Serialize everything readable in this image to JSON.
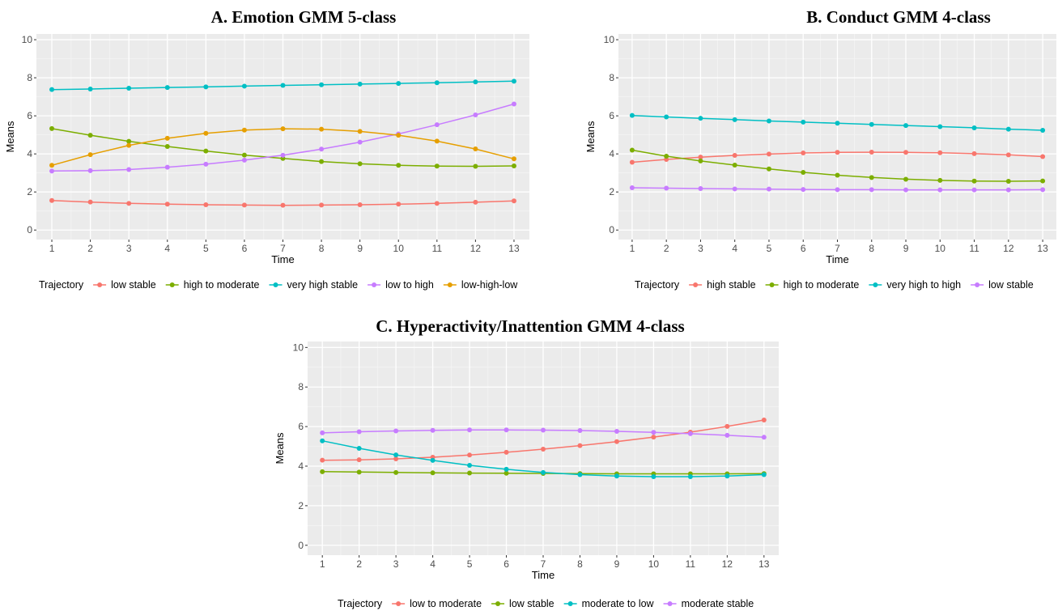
{
  "chart_data": [
    {
      "type": "line",
      "title": "A. Emotion GMM 5-class",
      "xlabel": "Time",
      "ylabel": "Means",
      "x": [
        1,
        2,
        3,
        4,
        5,
        6,
        7,
        8,
        9,
        10,
        11,
        12,
        13
      ],
      "xlim": [
        0.6,
        13.4
      ],
      "ylim": [
        -0.5,
        10.3
      ],
      "yticks": [
        0,
        2,
        4,
        6,
        8,
        10
      ],
      "grid": true,
      "legend_title": "Trajectory",
      "legend_position": "bottom",
      "series": [
        {
          "name": "low stable",
          "color": "#F8766D",
          "values": [
            1.55,
            1.47,
            1.4,
            1.36,
            1.33,
            1.31,
            1.3,
            1.31,
            1.33,
            1.36,
            1.4,
            1.46,
            1.53
          ]
        },
        {
          "name": "high to moderate",
          "color": "#7CAE00",
          "values": [
            5.33,
            4.98,
            4.66,
            4.39,
            4.15,
            3.94,
            3.76,
            3.6,
            3.48,
            3.4,
            3.36,
            3.35,
            3.37
          ]
        },
        {
          "name": "very high stable",
          "color": "#00BFC4",
          "values": [
            7.38,
            7.41,
            7.45,
            7.49,
            7.52,
            7.56,
            7.6,
            7.63,
            7.67,
            7.7,
            7.74,
            7.78,
            7.82
          ]
        },
        {
          "name": "low to high",
          "color": "#C77CFF",
          "values": [
            3.1,
            3.12,
            3.18,
            3.3,
            3.46,
            3.67,
            3.93,
            4.25,
            4.62,
            5.05,
            5.53,
            6.05,
            6.62
          ]
        },
        {
          "name": "low-high-low",
          "color": "#E69F00",
          "values": [
            3.4,
            3.96,
            4.45,
            4.82,
            5.08,
            5.25,
            5.32,
            5.3,
            5.18,
            4.98,
            4.67,
            4.26,
            3.74
          ]
        }
      ]
    },
    {
      "type": "line",
      "title": "B. Conduct GMM 4-class",
      "xlabel": "Time",
      "ylabel": "Means",
      "x": [
        1,
        2,
        3,
        4,
        5,
        6,
        7,
        8,
        9,
        10,
        11,
        12,
        13
      ],
      "xlim": [
        0.6,
        13.4
      ],
      "ylim": [
        -0.5,
        10.3
      ],
      "yticks": [
        0,
        2,
        4,
        6,
        8,
        10
      ],
      "grid": true,
      "legend_title": "Trajectory",
      "legend_position": "bottom",
      "series": [
        {
          "name": "high stable",
          "color": "#F8766D",
          "values": [
            3.56,
            3.71,
            3.83,
            3.92,
            3.99,
            4.05,
            4.08,
            4.09,
            4.08,
            4.06,
            4.01,
            3.95,
            3.86
          ]
        },
        {
          "name": "high to moderate",
          "color": "#7CAE00",
          "values": [
            4.2,
            3.88,
            3.63,
            3.41,
            3.21,
            3.03,
            2.88,
            2.76,
            2.67,
            2.61,
            2.57,
            2.56,
            2.58
          ]
        },
        {
          "name": "very high to high",
          "color": "#00BFC4",
          "values": [
            6.02,
            5.94,
            5.87,
            5.8,
            5.73,
            5.67,
            5.61,
            5.55,
            5.49,
            5.43,
            5.37,
            5.3,
            5.24
          ]
        },
        {
          "name": "low stable",
          "color": "#C77CFF",
          "values": [
            2.22,
            2.2,
            2.18,
            2.16,
            2.15,
            2.13,
            2.12,
            2.12,
            2.11,
            2.11,
            2.11,
            2.11,
            2.12
          ]
        }
      ]
    },
    {
      "type": "line",
      "title": "C. Hyperactivity/Inattention GMM 4-class",
      "xlabel": "Time",
      "ylabel": "Means",
      "x": [
        1,
        2,
        3,
        4,
        5,
        6,
        7,
        8,
        9,
        10,
        11,
        12,
        13
      ],
      "xlim": [
        0.6,
        13.4
      ],
      "ylim": [
        -0.5,
        10.3
      ],
      "yticks": [
        0,
        2,
        4,
        6,
        8,
        10
      ],
      "grid": true,
      "legend_title": "Trajectory",
      "legend_position": "bottom",
      "series": [
        {
          "name": "low to moderate",
          "color": "#F8766D",
          "values": [
            4.3,
            4.32,
            4.37,
            4.45,
            4.56,
            4.7,
            4.86,
            5.04,
            5.24,
            5.47,
            5.72,
            6.01,
            6.33
          ]
        },
        {
          "name": "low stable",
          "color": "#7CAE00",
          "values": [
            3.72,
            3.7,
            3.68,
            3.66,
            3.65,
            3.64,
            3.63,
            3.62,
            3.61,
            3.61,
            3.61,
            3.61,
            3.62
          ]
        },
        {
          "name": "moderate to low",
          "color": "#00BFC4",
          "values": [
            5.28,
            4.9,
            4.57,
            4.29,
            4.04,
            3.84,
            3.68,
            3.57,
            3.5,
            3.47,
            3.47,
            3.5,
            3.57
          ]
        },
        {
          "name": "moderate stable",
          "color": "#C77CFF",
          "values": [
            5.68,
            5.74,
            5.78,
            5.81,
            5.83,
            5.83,
            5.82,
            5.8,
            5.76,
            5.71,
            5.64,
            5.56,
            5.46
          ]
        }
      ]
    }
  ]
}
